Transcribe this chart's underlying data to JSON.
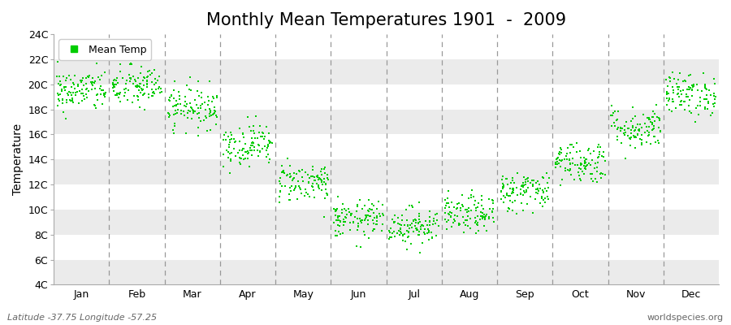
{
  "title": "Monthly Mean Temperatures 1901  -  2009",
  "ylabel": "Temperature",
  "months": [
    "Jan",
    "Feb",
    "Mar",
    "Apr",
    "May",
    "Jun",
    "Jul",
    "Aug",
    "Sep",
    "Oct",
    "Nov",
    "Dec"
  ],
  "month_means": [
    19.5,
    19.8,
    18.2,
    15.2,
    12.2,
    9.2,
    8.7,
    9.6,
    11.5,
    13.8,
    16.5,
    19.2
  ],
  "month_stds": [
    0.85,
    0.85,
    0.85,
    0.85,
    0.8,
    0.75,
    0.75,
    0.75,
    0.8,
    0.85,
    0.85,
    0.85
  ],
  "ylim": [
    4,
    24
  ],
  "yticks": [
    4,
    6,
    8,
    10,
    12,
    14,
    16,
    18,
    20,
    22,
    24
  ],
  "ytick_labels": [
    "4C",
    "6C",
    "8C",
    "10C",
    "12C",
    "14C",
    "16C",
    "18C",
    "20C",
    "22C",
    "24C"
  ],
  "n_years": 109,
  "dot_color": "#00cc00",
  "dot_size": 3.5,
  "background_color": "#ffffff",
  "band_color_odd": "#ebebeb",
  "band_color_even": "#ffffff",
  "legend_label": "Mean Temp",
  "footer_left": "Latitude -37.75 Longitude -57.25",
  "footer_right": "worldspecies.org",
  "title_fontsize": 15,
  "label_fontsize": 10,
  "tick_fontsize": 9,
  "footer_fontsize": 8,
  "seed": 42,
  "vline_positions": [
    1,
    2,
    3,
    4,
    5,
    6,
    7,
    8,
    9,
    10,
    11
  ],
  "month_xtick_positions": [
    0.5,
    1.5,
    2.5,
    3.5,
    4.5,
    5.5,
    6.5,
    7.5,
    8.5,
    9.5,
    10.5,
    11.5
  ]
}
